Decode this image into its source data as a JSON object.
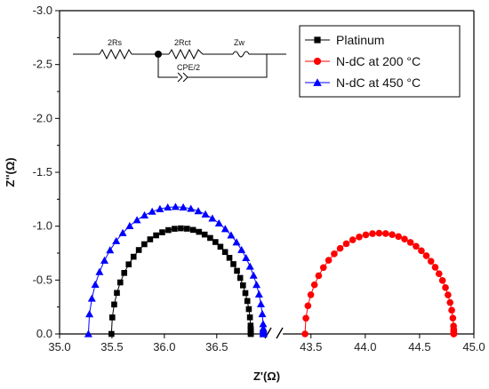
{
  "chart_data": {
    "type": "scatter",
    "xlabel": "Z'(Ω)",
    "ylabel": "Z''(Ω)",
    "ylim": [
      -3.0,
      0.0
    ],
    "y_inverted": true,
    "x_axis_break": true,
    "x_segments": [
      {
        "range": [
          35.0,
          36.96
        ],
        "ticks": [
          35.0,
          35.5,
          36.0,
          36.5
        ]
      },
      {
        "range": [
          43.24,
          45.0
        ],
        "ticks": [
          43.5,
          44.0,
          44.5,
          45.0
        ]
      }
    ],
    "x_tick_labels": [
      "35.0",
      "35.5",
      "36.0",
      "36.5",
      "43.5",
      "44.0",
      "44.5",
      "45.0"
    ],
    "y_ticks": [
      -3.0,
      -2.5,
      -2.0,
      -1.5,
      -1.0,
      -0.5,
      0.0
    ],
    "y_tick_labels": [
      "-3.0",
      "-2.5",
      "-2.0",
      "-1.5",
      "-1.0",
      "-0.5",
      "0.0"
    ],
    "legend_position": "top-right",
    "series": [
      {
        "name": "Platinum",
        "color": "#000000",
        "marker": "square",
        "segment": 0,
        "center": 36.16,
        "radius": 0.665,
        "depth": 0.98
      },
      {
        "name": "N-dC at 200 °C",
        "color": "#ff0000",
        "marker": "circle",
        "segment": 1,
        "center": 44.13,
        "radius": 0.685,
        "depth": 0.935
      },
      {
        "name": "N-dC at 450 °C",
        "color": "#0000ff",
        "marker": "triangle",
        "segment": 0,
        "center": 36.11,
        "radius": 0.835,
        "depth": 1.18
      }
    ],
    "legend": [
      {
        "label": "Platinum",
        "color": "#000000",
        "marker": "square"
      },
      {
        "label": "N-dC at 200 °C",
        "color": "#ff0000",
        "marker": "circle"
      },
      {
        "label": "N-dC at 450 °C",
        "color": "#0000ff",
        "marker": "triangle"
      }
    ],
    "circuit": {
      "labels": [
        "2Rs",
        "2Rct",
        "Zw",
        "CPE/2"
      ]
    }
  }
}
